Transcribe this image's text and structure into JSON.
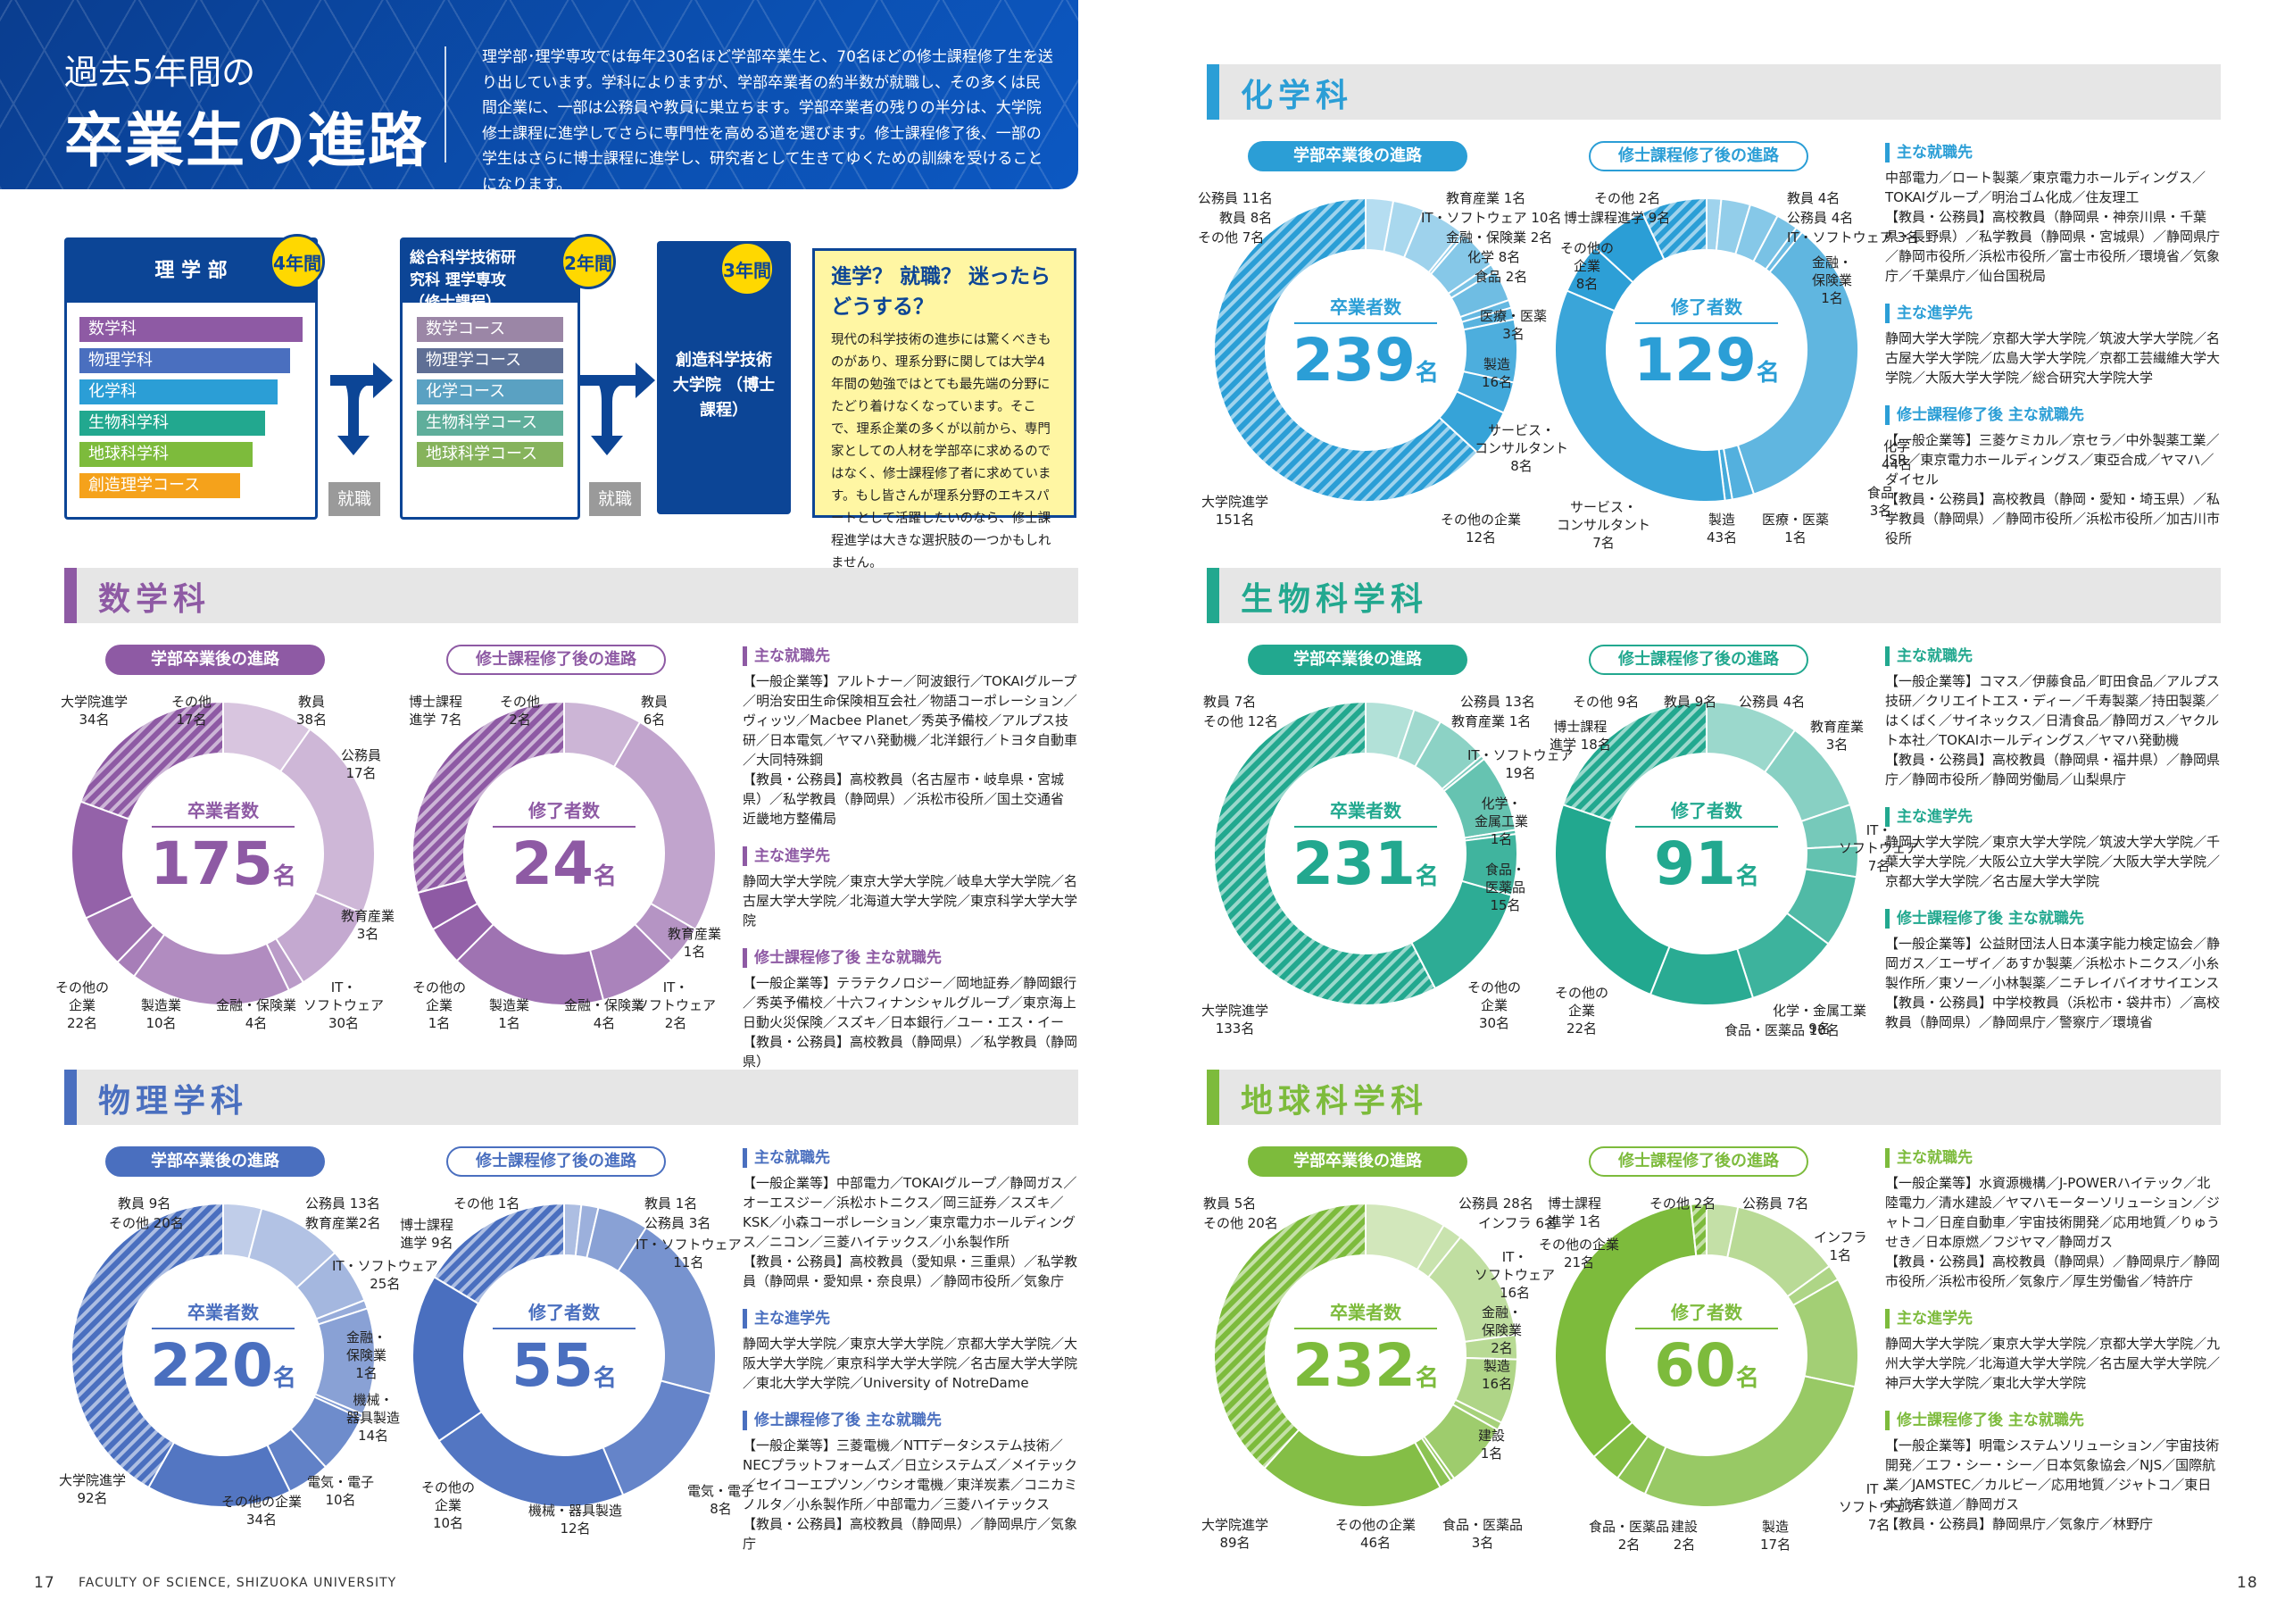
{
  "banner": {
    "title1": "過去5年間の",
    "title2": "卒業生の進路",
    "intro": "理学部･理学専攻では毎年230名ほど学部卒業生と、70名ほどの修士課程修了生を送り出しています。学科によりますが、学部卒業者の約半数が就職し、その多くは民間企業に、一部は公務員や教員に巣立ちます。学部卒業者の残りの半分は、大学院修士課程に進学してさらに専門性を高める道を選びます。修士課程修了後、一部の学生はさらに博士課程に進学し、研究者として生きてゆくための訓練を受けることになります。"
  },
  "flow": {
    "stage1": {
      "title": "理 学 部",
      "badge": "4年間",
      "courses": [
        "数学科",
        "物理学科",
        "化学科",
        "生物科学科",
        "地球科学科",
        "創造理学コース"
      ]
    },
    "stage2": {
      "title": "総合科学技術研究科 理学専攻（修士課程）",
      "badge": "2年間",
      "courses": [
        "数学コース",
        "物理学コース",
        "化学コース",
        "生物科学コース",
        "地球科学コース"
      ]
    },
    "stage3": {
      "title": "創造科学技術 大学院 （博士課程）",
      "badge": "3年間"
    },
    "job_label": "就職",
    "question": {
      "title": "進学？ 就職？ 迷ったらどうする？",
      "body": "現代の科学技術の進歩には驚くべきものがあり、理系分野に関しては大学4年間の勉強ではとても最先端の分野にたどり着けなくなっています。そこで、理系企業の多くが以前から、専門家としての人材を学部卒に求めるのではなく、修士課程修了者に求めています。もし皆さんが理系分野のエキスパートとして活躍したいのなら、修士課程進学は大きな選択肢の一つかもしれません。"
    }
  },
  "labels": {
    "ug_pill": "学部卒業後の進路",
    "ms_pill": "修士課程修了後の進路",
    "ug_cap": "卒業者数",
    "ms_cap": "修了者数",
    "unit": "名",
    "h_jobs": "主な就職先",
    "h_grad": "主な進学先",
    "h_msjobs": "修士課程修了後 主な就職先"
  },
  "colors": {
    "math": "#8e5aa4",
    "phys": "#4a6fbf",
    "chem": "#2b9ed6",
    "bio": "#22a88f",
    "earth": "#7dbb3c",
    "navy": "#0c4596"
  },
  "sections": [
    {
      "key": "math",
      "title": "数学科",
      "ug_total": "175",
      "ms_total": "24",
      "ug_labels": [
        "大学院進学\n34名",
        "その他\n17名",
        "教員\n38名",
        "公務員\n17名",
        "教育産業\n3名",
        "IT・\nソフトウェア\n30名",
        "金融・保険業\n4名",
        "製造業\n10名",
        "その他の\n企業\n22名"
      ],
      "ms_labels": [
        "博士課程\n進学 7名",
        "その他\n2名",
        "教員\n6名",
        "教育産業\n1名",
        "IT・\nソフトウェア\n2名",
        "金融・保険業\n4名",
        "製造業\n1名",
        "その他の\n企業\n1名"
      ],
      "jobs": "【一般企業等】アルトナー／阿波銀行／TOKAIグループ／明治安田生命保険相互会社／物語コーポレーション／ヴィッツ／Macbee Planet／秀英予備校／アルプス技研／日本電気／ヤマハ発動機／北洋銀行／トヨタ自動車／大同特殊鋼\n【教員・公務員】高校教員（名古屋市・岐阜県・宮城県）／私学教員（静岡県）／浜松市役所／国土交通省 近畿地方整備局",
      "grad": "静岡大学大学院／東京大学大学院／岐阜大学大学院／名古屋大学大学院／北海道大学大学院／東京科学大学大学院",
      "msjobs": "【一般企業等】テラテクノロジー／岡地証券／静岡銀行／秀英予備校／十六フィナンシャルグループ／東京海上日動火災保険／スズキ／日本銀行／ユー・エス・イー\n【教員・公務員】高校教員（静岡県）／私学教員（静岡県）"
    },
    {
      "key": "phys",
      "title": "物理学科",
      "ug_total": "220",
      "ms_total": "55",
      "ug_labels": [
        "教員 9名",
        "その他 20名",
        "公務員 13名",
        "教育産業2名",
        "IT・ソフトウェア\n25名",
        "金融・\n保険業\n1名",
        "機械・\n器具製造\n14名",
        "電気・電子\n10名",
        "その他の企業\n34名",
        "大学院進学\n92名"
      ],
      "ms_labels": [
        "その他 1名",
        "博士課程\n進学 9名",
        "教員 1名",
        "公務員 3名",
        "IT・ソフトウェア\n11名",
        "電気・電子\n8名",
        "機械・器具製造\n12名",
        "その他の\n企業\n10名"
      ],
      "jobs": "【一般企業等】中部電力／TOKAIグループ／静岡ガス／オーエスジー／浜松ホトニクス／岡三証券／スズキ／KSK／小森コーポレーション／東京電力ホールディングス／ニコン／三菱ハイテックス／小糸製作所\n【教員・公務員】高校教員（愛知県・三重県）／私学教員（静岡県・愛知県・奈良県）／静岡市役所／気象庁",
      "grad": "静岡大学大学院／東京大学大学院／京都大学大学院／大阪大学大学院／東京科学大学大学院／名古屋大学大学院／東北大学大学院／University of NotreDame",
      "msjobs": "【一般企業等】三菱電機／NTTデータシステム技術／NECプラットフォームズ／日立システムズ／メイテック／セイコーエプソン／ウシオ電機／東洋炭素／コニカミノルタ／小糸製作所／中部電力／三菱ハイテックス\n【教員・公務員】高校教員（静岡県）／静岡県庁／気象庁"
    },
    {
      "key": "chem",
      "title": "化学科",
      "ug_total": "239",
      "ms_total": "129",
      "ug_labels": [
        "公務員 11名",
        "教員 8名",
        "その他 7名",
        "教育産業 1名",
        "IT・ソフトウェア 10名",
        "金融・保険業 2名",
        "化学 8名",
        "食品 2名",
        "医療・医薬\n3名",
        "製造\n16名",
        "サービス・\nコンサルタント\n8名",
        "その他の企業\n12名",
        "大学院進学\n151名"
      ],
      "ms_labels": [
        "その他 2名",
        "博士課程進学 9名",
        "その他の\n企業\n8名",
        "教員 4名",
        "公務員 4名",
        "IT・ソフトウェア 3名",
        "金融・\n保険業\n1名",
        "化学\n44名",
        "食品\n3名",
        "医療・医薬\n1名",
        "製造\n43名",
        "サービス・\nコンサルタント\n7名"
      ],
      "jobs": "中部電力／ロート製薬／東京電力ホールディングス／TOKAIグループ／明治ゴム化成／住友理工\n【教員・公務員】高校教員（静岡県・神奈川県・千葉県・長野県）／私学教員（静岡県・宮城県）／静岡県庁／静岡市役所／浜松市役所／富士市役所／環境省／気象庁／千葉県庁／仙台国税局",
      "grad": "静岡大学大学院／京都大学大学院／筑波大学大学院／名古屋大学大学院／広島大学大学院／京都工芸繊維大学大学院／大阪大学大学院／総合研究大学院大学",
      "msjobs": "【一般企業等】三菱ケミカル／京セラ／中外製薬工業／JSR／東京電力ホールディングス／東亞合成／ヤマハ／ダイセル\n【教員・公務員】高校教員（静岡・愛知・埼玉県）／私学教員（静岡県）／静岡市役所／浜松市役所／加古川市役所"
    },
    {
      "key": "bio",
      "title": "生物科学科",
      "ug_total": "231",
      "ms_total": "91",
      "ug_labels": [
        "教員 7名",
        "その他 12名",
        "公務員 13名",
        "教育産業 1名",
        "IT・ソフトウェア\n19名",
        "化学・\n金属工業\n1名",
        "食品・\n医薬品\n15名",
        "その他の\n企業\n30名",
        "大学院進学\n133名"
      ],
      "ms_labels": [
        "その他 9名",
        "教員 9名",
        "公務員 4名",
        "博士課程\n進学 18名",
        "教育産業\n3名",
        "IT・\nソフトウェア\n7名",
        "化学・金属工業\n9名",
        "食品・医薬品 10名",
        "その他の\n企業\n22名"
      ],
      "jobs": "【一般企業等】コマス／伊藤食品／町田食品／アルプス技研／クリエイトエス・ディー／千寿製薬／持田製薬／はくばく／サイネックス／日清食品／静岡ガス／ヤクルト本社／TOKAIホールディングス／ヤマハ発動機\n【教員・公務員】高校教員（静岡県・福井県）／静岡県庁／静岡市役所／静岡労働局／山梨県庁",
      "grad": "静岡大学大学院／東京大学大学院／筑波大学大学院／千葉大学大学院／大阪公立大学大学院／大阪大学大学院／京都大学大学院／名古屋大学大学院",
      "msjobs": "【一般企業等】公益財団法人日本漢字能力検定協会／静岡ガス／エーザイ／あすか製薬／浜松ホトニクス／小糸製作所／東ソー／小林製薬／ニチレイバイオサイエンス\n【教員・公務員】中学校教員（浜松市・袋井市）／高校教員（静岡県）／静岡県庁／警察庁／環境省"
    },
    {
      "key": "earth",
      "title": "地球科学科",
      "ug_total": "232",
      "ms_total": "60",
      "ug_labels": [
        "教員 5名",
        "その他 20名",
        "公務員 28名",
        "インフラ 6名",
        "IT・\nソフトウェア\n16名",
        "金融・\n保険業\n2名",
        "製造\n16名",
        "建設\n1名",
        "食品・医薬品\n3名",
        "その他の企業\n46名",
        "大学院進学\n89名"
      ],
      "ms_labels": [
        "博士課程\n進学 1名",
        "その他の企業\n21名",
        "その他 2名",
        "公務員 7名",
        "インフラ\n1名",
        "IT・\nソフトウェア\n7名",
        "製造\n17名",
        "建設\n2名",
        "食品・医薬品\n2名"
      ],
      "jobs": "【一般企業等】水資源機構／J-POWERハイテック／北陸電力／清水建設／ヤマハモーターソリューション／ジャトコ／日産自動車／宇宙技術開発／応用地質／りゅうせき／日本原燃／フジヤマ／静岡ガス\n【教員・公務員】高校教員（静岡県）／静岡県庁／静岡市役所／浜松市役所／気象庁／厚生労働省／特許庁",
      "grad": "静岡大学大学院／東京大学大学院／京都大学大学院／九州大学大学院／北海道大学大学院／名古屋大学大学院／神戸大学大学院／東北大学大学院",
      "msjobs": "【一般企業等】明電システムソリューション／宇宙技術開発／エフ・シー・シー／日本気象協会／NJS／国際航業／JAMSTEC／カルビー／応用地質／ジャトコ／東日本旅客鉄道／静岡ガス\n【教員・公務員】静岡県庁／気象庁／林野庁"
    }
  ],
  "chart_data": [
    {
      "type": "pie",
      "title": "数学科 学部卒業後の進路",
      "categories": [
        "大学院進学",
        "その他",
        "教員",
        "公務員",
        "教育産業",
        "IT・ソフトウェア",
        "金融・保険業",
        "製造業",
        "その他の企業"
      ],
      "values": [
        34,
        17,
        38,
        17,
        3,
        30,
        4,
        10,
        22
      ]
    },
    {
      "type": "pie",
      "title": "数学科 修士課程修了後の進路",
      "categories": [
        "博士課程進学",
        "その他",
        "教員",
        "教育産業",
        "IT・ソフトウェア",
        "金融・保険業",
        "製造業",
        "その他の企業"
      ],
      "values": [
        7,
        2,
        6,
        1,
        2,
        4,
        1,
        1
      ]
    },
    {
      "type": "pie",
      "title": "物理学科 学部卒業後の進路",
      "categories": [
        "大学院進学",
        "教員",
        "その他",
        "公務員",
        "教育産業",
        "IT・ソフトウェア",
        "金融・保険業",
        "機械・器具製造",
        "電気・電子",
        "その他の企業"
      ],
      "values": [
        92,
        9,
        20,
        13,
        2,
        25,
        1,
        14,
        10,
        34
      ]
    },
    {
      "type": "pie",
      "title": "物理学科 修士課程修了後の進路",
      "categories": [
        "博士課程進学",
        "その他",
        "教員",
        "公務員",
        "IT・ソフトウェア",
        "電気・電子",
        "機械・器具製造",
        "その他の企業"
      ],
      "values": [
        9,
        1,
        1,
        3,
        11,
        8,
        12,
        10
      ]
    },
    {
      "type": "pie",
      "title": "化学科 学部卒業後の進路",
      "categories": [
        "大学院進学",
        "その他",
        "教員",
        "公務員",
        "教育産業",
        "IT・ソフトウェア",
        "金融・保険業",
        "化学",
        "食品",
        "医療・医薬",
        "製造",
        "サービス・コンサルタント",
        "その他の企業"
      ],
      "values": [
        151,
        7,
        8,
        11,
        1,
        10,
        2,
        8,
        2,
        3,
        16,
        8,
        12
      ]
    },
    {
      "type": "pie",
      "title": "化学科 修士課程修了後の進路",
      "categories": [
        "博士課程進学",
        "その他",
        "教員",
        "公務員",
        "IT・ソフトウェア",
        "金融・保険業",
        "化学",
        "食品",
        "医療・医薬",
        "製造",
        "サービス・コンサルタント",
        "その他の企業"
      ],
      "values": [
        9,
        2,
        4,
        4,
        3,
        1,
        44,
        3,
        1,
        43,
        7,
        8
      ]
    },
    {
      "type": "pie",
      "title": "生物科学科 学部卒業後の進路",
      "categories": [
        "大学院進学",
        "その他",
        "教員",
        "公務員",
        "教育産業",
        "IT・ソフトウェア",
        "化学・金属工業",
        "食品・医薬品",
        "その他の企業"
      ],
      "values": [
        133,
        12,
        7,
        13,
        1,
        19,
        1,
        15,
        30
      ]
    },
    {
      "type": "pie",
      "title": "生物科学科 修士課程修了後の進路",
      "categories": [
        "博士課程進学",
        "その他",
        "教員",
        "公務員",
        "教育産業",
        "IT・ソフトウェア",
        "化学・金属工業",
        "食品・医薬品",
        "その他の企業"
      ],
      "values": [
        18,
        9,
        9,
        4,
        3,
        7,
        9,
        10,
        22
      ]
    },
    {
      "type": "pie",
      "title": "地球科学科 学部卒業後の進路",
      "categories": [
        "大学院進学",
        "その他",
        "教員",
        "公務員",
        "インフラ",
        "IT・ソフトウェア",
        "金融・保険業",
        "製造",
        "建設",
        "食品・医薬品",
        "その他の企業"
      ],
      "values": [
        89,
        20,
        5,
        28,
        6,
        16,
        2,
        16,
        1,
        3,
        46
      ]
    },
    {
      "type": "pie",
      "title": "地球科学科 修士課程修了後の進路",
      "categories": [
        "博士課程進学",
        "その他",
        "公務員",
        "インフラ",
        "IT・ソフトウェア",
        "製造",
        "建設",
        "食品・医薬品",
        "その他の企業"
      ],
      "values": [
        1,
        2,
        7,
        1,
        7,
        17,
        2,
        2,
        21
      ]
    }
  ],
  "footer": {
    "page_left": "17",
    "page_right": "18",
    "university": "FACULTY OF SCIENCE, SHIZUOKA UNIVERSITY"
  }
}
